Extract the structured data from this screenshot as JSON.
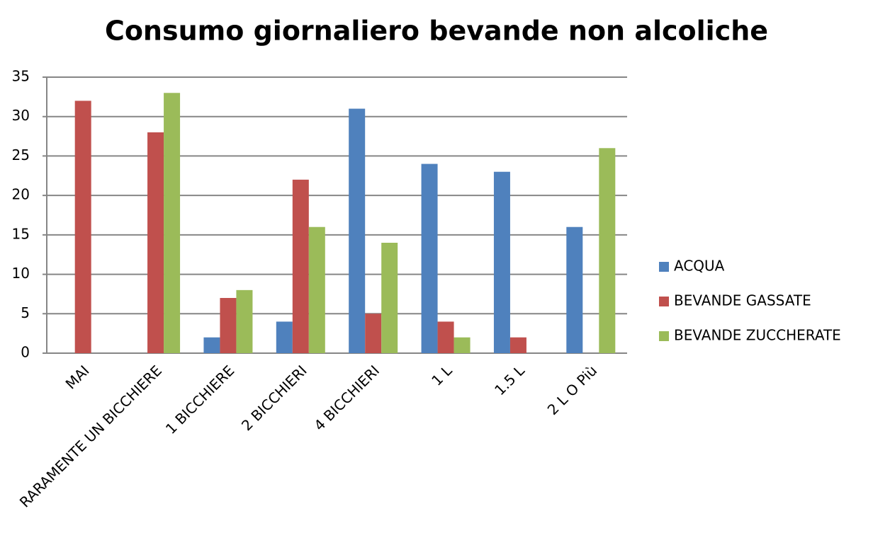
{
  "chart_data": {
    "type": "bar",
    "title": "Consumo giornaliero bevande non alcoliche",
    "categories": [
      "MAI",
      "RARAMENTE UN BICCHIERE",
      "1 BICCHIERE",
      "2 BICCHIERI",
      "4 BICCHIERI",
      "1 L",
      "1.5 L",
      "2 L O Più"
    ],
    "series": [
      {
        "name": "ACQUA",
        "color": "#4f81bd",
        "values": [
          0,
          0,
          2,
          4,
          31,
          24,
          23,
          16
        ]
      },
      {
        "name": "BEVANDE GASSATE",
        "color": "#c0504d",
        "values": [
          32,
          28,
          7,
          22,
          5,
          4,
          2,
          0
        ]
      },
      {
        "name": "BEVANDE ZUCCHERATE",
        "color": "#9bbb59",
        "values": [
          0,
          33,
          8,
          16,
          14,
          2,
          0,
          26
        ]
      }
    ],
    "ylim": [
      0,
      35
    ],
    "yticks": [
      0,
      5,
      10,
      15,
      20,
      25,
      30,
      35
    ],
    "grid": true,
    "legend": "right"
  }
}
